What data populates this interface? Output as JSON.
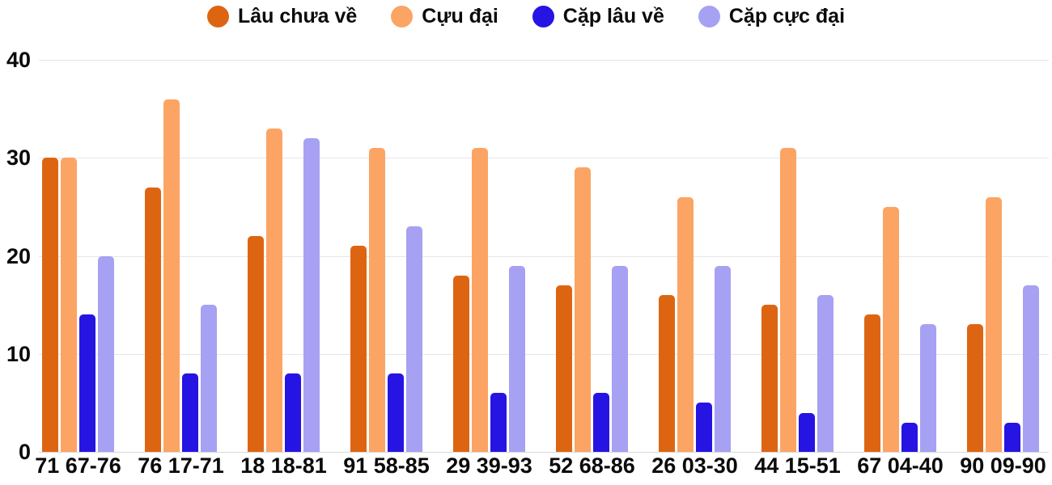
{
  "chart_data": {
    "type": "bar",
    "title": "",
    "xlabel": "",
    "ylabel": "",
    "ylim": [
      0,
      40
    ],
    "y_ticks": [
      0,
      10,
      20,
      30,
      40
    ],
    "grid": true,
    "legend_position": "top",
    "background": "#ffffff",
    "gridline_color": "#e6e6e6",
    "text_color": "#0b0b0b",
    "categories": [
      "71 67-76",
      "76 17-71",
      "18 18-81",
      "91 58-85",
      "29 39-93",
      "52 68-86",
      "26 03-30",
      "44 15-51",
      "67 04-40",
      "90 09-90"
    ],
    "series": [
      {
        "name": "Lâu chưa về",
        "color": "#dd6512",
        "values": [
          30,
          27,
          22,
          21,
          18,
          17,
          16,
          15,
          14,
          13
        ]
      },
      {
        "name": "Cựu đại",
        "color": "#fca464",
        "values": [
          30,
          36,
          33,
          31,
          31,
          29,
          26,
          31,
          25,
          26
        ]
      },
      {
        "name": "Cặp lâu về",
        "color": "#2614e3",
        "values": [
          14,
          8,
          8,
          8,
          6,
          6,
          5,
          4,
          3,
          3
        ]
      },
      {
        "name": "Cặp cực đại",
        "color": "#a6a1f2",
        "values": [
          20,
          15,
          32,
          23,
          19,
          19,
          19,
          16,
          13,
          17
        ]
      }
    ]
  }
}
